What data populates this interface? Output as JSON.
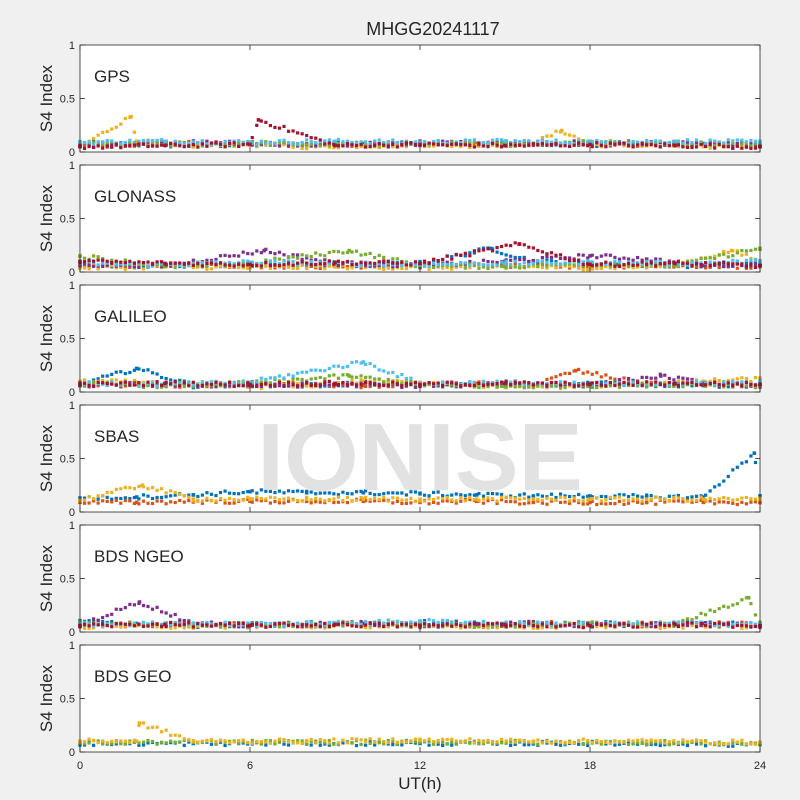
{
  "figure_title": "MHGG20241117",
  "watermark": "IONISE",
  "xlabel": "UT(h)",
  "xticks": [
    "0",
    "6",
    "12",
    "18",
    "24"
  ],
  "colors": {
    "background": "#f0f0f0",
    "axes": "#ffffff",
    "frame": "#262626",
    "series": [
      "#0072BD",
      "#D95319",
      "#EDB120",
      "#7E2F8E",
      "#77AC30",
      "#4DBEEE",
      "#A2142F"
    ]
  },
  "chart_data": [
    {
      "type": "scatter",
      "panel_label": "GPS",
      "ylabel": "S4 Index",
      "xlim": [
        0,
        24
      ],
      "ylim": [
        0,
        1
      ],
      "yticks": [
        "0",
        "0.5",
        "1"
      ],
      "series": [
        {
          "color": "#0072BD",
          "x": [
            0,
            2,
            4,
            6,
            8,
            10,
            12,
            14,
            16,
            18,
            20,
            22,
            24
          ],
          "y": [
            0.08,
            0.07,
            0.06,
            0.07,
            0.07,
            0.08,
            0.08,
            0.07,
            0.08,
            0.07,
            0.08,
            0.08,
            0.06
          ]
        },
        {
          "color": "#D95319",
          "x": [
            0,
            2,
            4,
            6,
            8,
            10,
            12,
            14,
            16,
            18,
            20,
            22,
            24
          ],
          "y": [
            0.06,
            0.07,
            0.08,
            0.09,
            0.07,
            0.06,
            0.07,
            0.08,
            0.07,
            0.08,
            0.06,
            0.07,
            0.05
          ]
        },
        {
          "color": "#EDB120",
          "x": [
            0,
            1.8,
            2,
            4,
            6,
            8,
            10,
            12,
            14,
            16,
            17,
            18,
            20,
            22,
            24
          ],
          "y": [
            0.05,
            0.33,
            0.1,
            0.06,
            0.07,
            0.05,
            0.06,
            0.07,
            0.06,
            0.08,
            0.2,
            0.07,
            0.06,
            0.05,
            0.06
          ]
        },
        {
          "color": "#7E2F8E",
          "x": [
            0,
            3,
            6,
            9,
            12,
            15,
            18,
            21,
            24
          ],
          "y": [
            0.07,
            0.09,
            0.08,
            0.07,
            0.09,
            0.08,
            0.09,
            0.08,
            0.07
          ]
        },
        {
          "color": "#77AC30",
          "x": [
            0,
            3,
            6,
            9,
            12,
            15,
            18,
            21,
            24
          ],
          "y": [
            0.08,
            0.07,
            0.08,
            0.07,
            0.08,
            0.07,
            0.1,
            0.08,
            0.07
          ]
        },
        {
          "color": "#4DBEEE",
          "x": [
            0,
            3,
            6,
            9,
            12,
            15,
            18,
            21,
            24
          ],
          "y": [
            0.09,
            0.1,
            0.09,
            0.1,
            0.09,
            0.1,
            0.09,
            0.1,
            0.09
          ]
        },
        {
          "color": "#A2142F",
          "x": [
            0,
            3,
            6,
            6.3,
            9,
            12,
            15,
            18,
            21,
            24
          ],
          "y": [
            0.05,
            0.06,
            0.07,
            0.3,
            0.06,
            0.07,
            0.06,
            0.07,
            0.06,
            0.05
          ]
        }
      ]
    },
    {
      "type": "scatter",
      "panel_label": "GLONASS",
      "ylabel": "S4 Index",
      "xlim": [
        0,
        24
      ],
      "ylim": [
        0,
        1
      ],
      "yticks": [
        "0",
        "0.5",
        "1"
      ],
      "series": [
        {
          "color": "#0072BD",
          "x": [
            0,
            3,
            6,
            9,
            12,
            14.5,
            16,
            19,
            22,
            24
          ],
          "y": [
            0.06,
            0.05,
            0.07,
            0.06,
            0.08,
            0.22,
            0.1,
            0.07,
            0.06,
            0.08
          ]
        },
        {
          "color": "#D95319",
          "x": [
            0,
            3,
            6,
            9,
            12,
            15,
            18,
            21,
            24
          ],
          "y": [
            0.05,
            0.07,
            0.06,
            0.05,
            0.07,
            0.06,
            0.05,
            0.06,
            0.05
          ]
        },
        {
          "color": "#EDB120",
          "x": [
            0,
            3,
            6,
            9,
            12,
            15,
            18,
            21,
            23,
            24
          ],
          "y": [
            0.04,
            0.05,
            0.04,
            0.05,
            0.04,
            0.05,
            0.04,
            0.06,
            0.2,
            0.1
          ]
        },
        {
          "color": "#7E2F8E",
          "x": [
            0,
            3,
            6.5,
            9,
            12,
            15,
            18,
            20,
            22,
            24
          ],
          "y": [
            0.07,
            0.06,
            0.2,
            0.08,
            0.06,
            0.1,
            0.15,
            0.12,
            0.06,
            0.07
          ]
        },
        {
          "color": "#77AC30",
          "x": [
            0,
            3,
            6,
            9.5,
            12,
            15,
            18,
            21,
            24
          ],
          "y": [
            0.15,
            0.05,
            0.08,
            0.2,
            0.06,
            0.05,
            0.08,
            0.06,
            0.22
          ]
        },
        {
          "color": "#4DBEEE",
          "x": [
            0,
            3,
            6,
            9,
            12,
            15,
            18,
            21,
            24
          ],
          "y": [
            0.08,
            0.07,
            0.09,
            0.08,
            0.07,
            0.08,
            0.09,
            0.08,
            0.1
          ]
        },
        {
          "color": "#A2142F",
          "x": [
            0,
            3,
            6,
            9,
            12,
            15.5,
            18,
            21,
            24
          ],
          "y": [
            0.1,
            0.08,
            0.07,
            0.09,
            0.08,
            0.26,
            0.07,
            0.08,
            0.06
          ]
        }
      ]
    },
    {
      "type": "scatter",
      "panel_label": "GALILEO",
      "ylabel": "S4 Index",
      "xlim": [
        0,
        24
      ],
      "ylim": [
        0,
        1
      ],
      "yticks": [
        "0",
        "0.5",
        "1"
      ],
      "series": [
        {
          "color": "#0072BD",
          "x": [
            0,
            2,
            4,
            6,
            8,
            10,
            12,
            14,
            16,
            18,
            20,
            22,
            24
          ],
          "y": [
            0.07,
            0.22,
            0.06,
            0.07,
            0.06,
            0.08,
            0.06,
            0.07,
            0.06,
            0.08,
            0.07,
            0.06,
            0.07
          ]
        },
        {
          "color": "#D95319",
          "x": [
            0,
            2,
            4,
            6,
            8,
            10,
            12,
            14,
            16,
            17.5,
            20,
            22,
            24
          ],
          "y": [
            0.08,
            0.07,
            0.06,
            0.08,
            0.07,
            0.06,
            0.07,
            0.08,
            0.06,
            0.2,
            0.07,
            0.08,
            0.06
          ]
        },
        {
          "color": "#EDB120",
          "x": [
            0,
            2,
            4,
            6,
            8,
            10,
            12,
            14,
            16,
            18,
            20,
            22,
            24
          ],
          "y": [
            0.1,
            0.09,
            0.06,
            0.05,
            0.06,
            0.1,
            0.09,
            0.06,
            0.05,
            0.06,
            0.08,
            0.1,
            0.12
          ]
        },
        {
          "color": "#7E2F8E",
          "x": [
            0,
            3,
            6,
            9,
            12,
            15,
            18,
            20.5,
            22,
            24
          ],
          "y": [
            0.06,
            0.07,
            0.06,
            0.07,
            0.06,
            0.07,
            0.06,
            0.15,
            0.08,
            0.06
          ]
        },
        {
          "color": "#77AC30",
          "x": [
            0,
            3,
            6,
            9.5,
            12,
            15,
            18,
            21,
            24
          ],
          "y": [
            0.07,
            0.06,
            0.08,
            0.15,
            0.07,
            0.05,
            0.06,
            0.07,
            0.06
          ]
        },
        {
          "color": "#4DBEEE",
          "x": [
            0,
            3,
            6,
            10,
            12,
            15,
            18,
            21,
            24
          ],
          "y": [
            0.08,
            0.07,
            0.09,
            0.28,
            0.08,
            0.09,
            0.07,
            0.08,
            0.09
          ]
        },
        {
          "color": "#A2142F",
          "x": [
            0,
            3,
            6,
            9,
            12,
            15,
            18,
            21,
            24
          ],
          "y": [
            0.07,
            0.08,
            0.07,
            0.08,
            0.07,
            0.08,
            0.07,
            0.08,
            0.07
          ]
        }
      ]
    },
    {
      "type": "scatter",
      "panel_label": "SBAS",
      "ylabel": "S4 Index",
      "xlim": [
        0,
        24
      ],
      "ylim": [
        0,
        1
      ],
      "yticks": [
        "0",
        "0.5",
        "1"
      ],
      "series": [
        {
          "color": "#0072BD",
          "x": [
            0,
            2,
            4,
            6,
            8,
            10,
            12,
            14,
            16,
            18,
            20,
            22,
            23.8,
            24
          ],
          "y": [
            0.13,
            0.14,
            0.16,
            0.19,
            0.18,
            0.18,
            0.17,
            0.16,
            0.15,
            0.15,
            0.14,
            0.14,
            0.55,
            0.15
          ]
        },
        {
          "color": "#D95319",
          "x": [
            0,
            2,
            4,
            6,
            8,
            10,
            12,
            14,
            16,
            18,
            20,
            22,
            24
          ],
          "y": [
            0.09,
            0.09,
            0.1,
            0.1,
            0.1,
            0.1,
            0.09,
            0.1,
            0.09,
            0.09,
            0.09,
            0.09,
            0.09
          ]
        },
        {
          "color": "#EDB120",
          "x": [
            0,
            2.2,
            4,
            6,
            8,
            10,
            12,
            14,
            16,
            18,
            20,
            22,
            24
          ],
          "y": [
            0.11,
            0.25,
            0.12,
            0.12,
            0.12,
            0.12,
            0.12,
            0.12,
            0.12,
            0.12,
            0.12,
            0.12,
            0.12
          ]
        }
      ]
    },
    {
      "type": "scatter",
      "panel_label": "BDS NGEO",
      "ylabel": "S4 Index",
      "xlim": [
        0,
        24
      ],
      "ylim": [
        0,
        1
      ],
      "yticks": [
        "0",
        "0.5",
        "1"
      ],
      "series": [
        {
          "color": "#0072BD",
          "x": [
            0,
            2,
            4,
            6,
            8,
            10,
            12,
            14,
            16,
            18,
            20,
            22,
            24
          ],
          "y": [
            0.1,
            0.08,
            0.06,
            0.07,
            0.08,
            0.07,
            0.09,
            0.08,
            0.07,
            0.08,
            0.07,
            0.08,
            0.07
          ]
        },
        {
          "color": "#D95319",
          "x": [
            0,
            2,
            4,
            6,
            8,
            10,
            12,
            14,
            16,
            18,
            20,
            22,
            24
          ],
          "y": [
            0.07,
            0.06,
            0.08,
            0.07,
            0.06,
            0.08,
            0.07,
            0.06,
            0.08,
            0.07,
            0.06,
            0.08,
            0.07
          ]
        },
        {
          "color": "#EDB120",
          "x": [
            0,
            2,
            4,
            6,
            8,
            10,
            12,
            14,
            16,
            18,
            20,
            22,
            24
          ],
          "y": [
            0.05,
            0.06,
            0.05,
            0.06,
            0.05,
            0.06,
            0.05,
            0.06,
            0.05,
            0.06,
            0.05,
            0.06,
            0.05
          ]
        },
        {
          "color": "#7E2F8E",
          "x": [
            0,
            2.1,
            4,
            6,
            8,
            10,
            12,
            14,
            16,
            18,
            20,
            22,
            24
          ],
          "y": [
            0.06,
            0.28,
            0.08,
            0.06,
            0.07,
            0.08,
            0.06,
            0.07,
            0.08,
            0.06,
            0.07,
            0.08,
            0.06
          ]
        },
        {
          "color": "#77AC30",
          "x": [
            0,
            3,
            6,
            9,
            12,
            15,
            18,
            21,
            23.6,
            24
          ],
          "y": [
            0.08,
            0.07,
            0.06,
            0.08,
            0.07,
            0.06,
            0.08,
            0.07,
            0.32,
            0.08
          ]
        },
        {
          "color": "#4DBEEE",
          "x": [
            0,
            3,
            6,
            9,
            12,
            15,
            18,
            21,
            24
          ],
          "y": [
            0.07,
            0.08,
            0.07,
            0.08,
            0.1,
            0.08,
            0.07,
            0.08,
            0.07
          ]
        },
        {
          "color": "#A2142F",
          "x": [
            0,
            3,
            6,
            9,
            12,
            15,
            18,
            21,
            24
          ],
          "y": [
            0.06,
            0.07,
            0.06,
            0.07,
            0.06,
            0.07,
            0.06,
            0.07,
            0.06
          ]
        }
      ]
    },
    {
      "type": "scatter",
      "panel_label": "BDS GEO",
      "ylabel": "S4 Index",
      "xlim": [
        0,
        24
      ],
      "ylim": [
        0,
        1
      ],
      "yticks": [
        "0",
        "0.5",
        "1"
      ],
      "series": [
        {
          "color": "#0072BD",
          "x": [
            0,
            4,
            8,
            12,
            16,
            20,
            24
          ],
          "y": [
            0.08,
            0.08,
            0.08,
            0.08,
            0.08,
            0.08,
            0.07
          ]
        },
        {
          "color": "#77AC30",
          "x": [
            0,
            4,
            8,
            12,
            16,
            20,
            24
          ],
          "y": [
            0.09,
            0.09,
            0.09,
            0.09,
            0.09,
            0.09,
            0.08
          ]
        },
        {
          "color": "#EDB120",
          "x": [
            0,
            2,
            2.1,
            4,
            8,
            12,
            16,
            20,
            24
          ],
          "y": [
            0.1,
            0.1,
            0.27,
            0.1,
            0.1,
            0.11,
            0.1,
            0.1,
            0.09
          ]
        }
      ]
    }
  ]
}
